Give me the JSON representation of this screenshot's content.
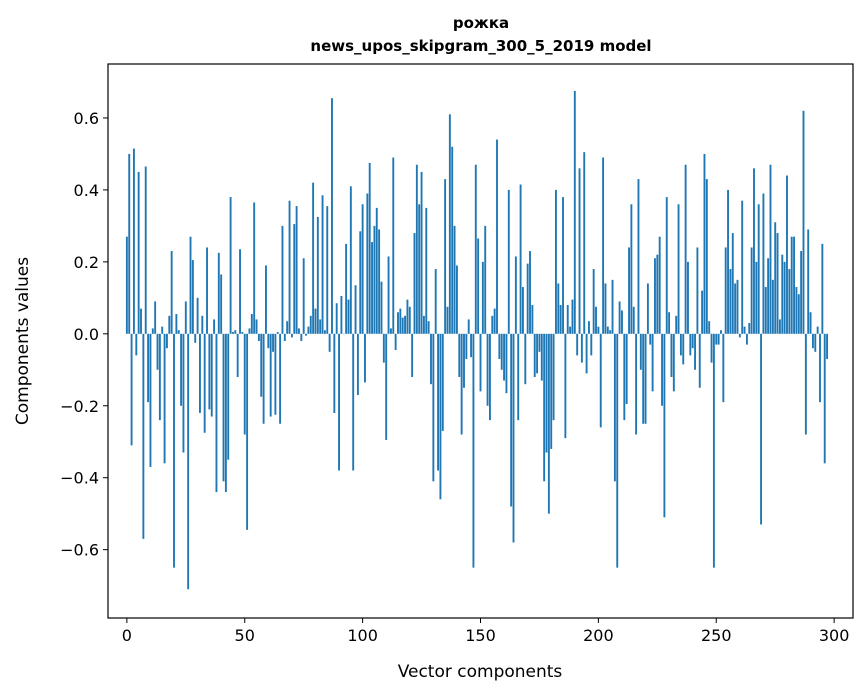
{
  "chart_data": {
    "type": "bar",
    "title": "рожка",
    "subtitle": "news_upos_skipgram_300_5_2019 model",
    "xlabel": "Vector components",
    "ylabel": "Components values",
    "xlim": [
      -8,
      308
    ],
    "ylim": [
      -0.79,
      0.75
    ],
    "xticks": [
      0,
      50,
      100,
      150,
      200,
      250,
      300
    ],
    "xtick_labels": [
      "0",
      "50",
      "100",
      "150",
      "200",
      "250",
      "300"
    ],
    "yticks": [
      -0.6,
      -0.4,
      -0.2,
      0.0,
      0.2,
      0.4,
      0.6
    ],
    "ytick_labels": [
      "−0.6",
      "−0.4",
      "−0.2",
      "0.0",
      "0.2",
      "0.4",
      "0.6"
    ],
    "grid": false,
    "bar_color": "#1f77b4",
    "values": [
      0.27,
      0.5,
      -0.31,
      0.515,
      -0.06,
      0.45,
      0.07,
      -0.57,
      0.465,
      -0.19,
      -0.37,
      0.015,
      0.09,
      -0.1,
      -0.24,
      0.02,
      -0.36,
      -0.04,
      0.05,
      0.23,
      -0.65,
      0.055,
      0.01,
      -0.2,
      -0.33,
      0.09,
      -0.71,
      0.27,
      0.205,
      -0.025,
      0.1,
      -0.22,
      0.05,
      -0.275,
      0.24,
      -0.21,
      -0.23,
      0.04,
      -0.44,
      0.225,
      0.165,
      -0.41,
      -0.44,
      -0.35,
      0.38,
      0.005,
      0.01,
      -0.12,
      0.235,
      0.005,
      -0.28,
      -0.545,
      0.015,
      0.055,
      0.365,
      0.04,
      -0.02,
      -0.175,
      -0.25,
      0.19,
      -0.04,
      -0.23,
      -0.05,
      -0.225,
      0.005,
      -0.25,
      0.3,
      -0.02,
      0.035,
      0.37,
      -0.01,
      0.305,
      0.355,
      0.015,
      -0.02,
      0.21,
      -0.005,
      0.02,
      0.05,
      0.42,
      0.07,
      0.325,
      0.04,
      0.385,
      0.01,
      0.355,
      -0.05,
      0.655,
      -0.22,
      0.085,
      -0.38,
      0.105,
      0.0,
      0.25,
      0.095,
      0.41,
      -0.38,
      0.135,
      -0.17,
      0.285,
      0.36,
      -0.135,
      0.39,
      0.475,
      0.255,
      0.3,
      0.35,
      0.29,
      0.145,
      -0.08,
      -0.295,
      0.215,
      0.015,
      0.49,
      -0.045,
      0.06,
      0.07,
      0.045,
      0.05,
      0.095,
      0.075,
      -0.12,
      0.28,
      0.47,
      0.36,
      0.45,
      0.05,
      0.35,
      0.035,
      -0.14,
      -0.41,
      0.18,
      -0.38,
      -0.46,
      -0.27,
      0.43,
      0.075,
      0.61,
      0.52,
      0.3,
      0.19,
      -0.12,
      -0.28,
      -0.15,
      -0.07,
      0.04,
      -0.065,
      -0.65,
      0.47,
      0.265,
      -0.16,
      0.2,
      0.3,
      -0.2,
      -0.24,
      0.05,
      0.07,
      0.54,
      -0.07,
      -0.1,
      -0.13,
      -0.165,
      0.4,
      -0.48,
      -0.58,
      0.215,
      -0.24,
      0.415,
      0.13,
      -0.14,
      0.195,
      0.23,
      0.08,
      -0.12,
      -0.11,
      -0.05,
      -0.13,
      -0.41,
      -0.33,
      -0.5,
      -0.32,
      -0.24,
      0.4,
      0.14,
      0.08,
      0.38,
      -0.29,
      0.08,
      0.02,
      0.095,
      0.675,
      -0.06,
      0.46,
      -0.08,
      0.505,
      -0.11,
      0.035,
      -0.06,
      0.18,
      0.075,
      0.02,
      -0.26,
      0.49,
      0.14,
      0.02,
      0.01,
      0.15,
      -0.41,
      -0.65,
      0.09,
      0.065,
      -0.24,
      -0.195,
      0.24,
      0.36,
      0.075,
      -0.28,
      0.43,
      -0.1,
      -0.25,
      -0.25,
      0.14,
      -0.03,
      -0.16,
      0.21,
      0.22,
      0.27,
      -0.2,
      -0.51,
      0.38,
      0.06,
      -0.12,
      -0.16,
      0.05,
      0.36,
      -0.06,
      -0.085,
      0.47,
      0.2,
      -0.06,
      -0.04,
      -0.1,
      0.24,
      -0.15,
      0.12,
      0.5,
      0.43,
      0.035,
      -0.08,
      -0.65,
      -0.03,
      -0.03,
      0.01,
      -0.19,
      0.24,
      0.4,
      0.18,
      0.28,
      0.14,
      0.15,
      -0.01,
      0.37,
      0.02,
      -0.03,
      0.03,
      0.24,
      0.46,
      0.2,
      0.36,
      -0.53,
      0.39,
      0.13,
      0.21,
      0.47,
      0.15,
      0.31,
      0.28,
      0.04,
      0.22,
      0.2,
      0.44,
      0.18,
      0.27,
      0.27,
      0.13,
      0.11,
      0.23,
      0.62,
      -0.28,
      0.29,
      0.06,
      -0.04,
      -0.05,
      0.02,
      -0.19,
      0.25,
      -0.36,
      -0.07
    ]
  }
}
